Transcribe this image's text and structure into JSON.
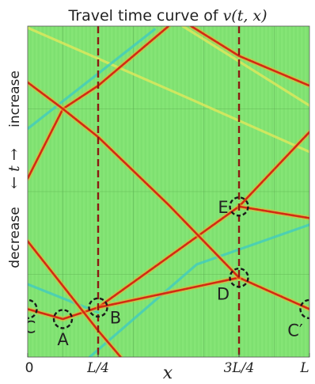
{
  "chart_data": {
    "type": "heatmap",
    "title": "Travel time curve of v(t,x)",
    "title_prefix": "Travel time curve of ",
    "title_math": "v(t, x)",
    "xlabel": "x",
    "ylabel_top": "increase",
    "ylabel_mid": "← t →",
    "ylabel_bottom": "decrease",
    "x_ticks": [
      "0",
      "L/4",
      "3L/4",
      "L"
    ],
    "x_range": [
      0,
      1
    ],
    "dashed_lines_x": [
      0.25,
      0.75
    ],
    "background_color": "#7ee070",
    "trace_color": "#d42a12",
    "faint_color": "#3cc9c5",
    "dashed_color": "#8b1a10",
    "markers": [
      {
        "label": "C",
        "x": 0.0,
        "y": 0.145
      },
      {
        "label": "A",
        "x": 0.125,
        "y": 0.115
      },
      {
        "label": "B",
        "x": 0.25,
        "y": 0.15
      },
      {
        "label": "D",
        "x": 0.75,
        "y": 0.24
      },
      {
        "label": "E",
        "x": 0.75,
        "y": 0.455
      },
      {
        "label": "C′",
        "x": 1.0,
        "y": 0.145
      }
    ],
    "traces": [
      {
        "points": [
          [
            0.0,
            0.145
          ],
          [
            0.125,
            0.115
          ],
          [
            0.25,
            0.15
          ],
          [
            0.75,
            0.455
          ],
          [
            1.0,
            0.68
          ]
        ]
      },
      {
        "points": [
          [
            0.25,
            0.15
          ],
          [
            0.75,
            0.24
          ],
          [
            1.0,
            0.145
          ]
        ]
      },
      {
        "points": [
          [
            0.0,
            0.54
          ],
          [
            0.125,
            0.75
          ],
          [
            0.25,
            0.82
          ],
          [
            0.5,
            1.0
          ]
        ]
      },
      {
        "points": [
          [
            0.0,
            0.83
          ],
          [
            0.125,
            0.75
          ],
          [
            0.25,
            0.665
          ],
          [
            0.5,
            0.46
          ],
          [
            0.75,
            0.24
          ]
        ]
      },
      {
        "points": [
          [
            0.58,
            1.0
          ],
          [
            0.75,
            0.91
          ],
          [
            1.0,
            0.82
          ]
        ]
      },
      {
        "points": [
          [
            0.0,
            0.35
          ],
          [
            0.25,
            0.08
          ],
          [
            0.33,
            0.0
          ]
        ]
      },
      {
        "points": [
          [
            0.75,
            0.455
          ],
          [
            1.0,
            0.42
          ]
        ]
      }
    ],
    "faint_traces": [
      {
        "points": [
          [
            0.0,
            0.22
          ],
          [
            0.25,
            0.135
          ]
        ]
      },
      {
        "points": [
          [
            0.0,
            0.995
          ],
          [
            0.55,
            0.79
          ],
          [
            1.0,
            0.62
          ]
        ]
      },
      {
        "points": [
          [
            0.22,
            0.0
          ],
          [
            0.6,
            0.28
          ],
          [
            1.0,
            0.4
          ]
        ]
      },
      {
        "points": [
          [
            0.55,
            1.0
          ],
          [
            1.0,
            0.76
          ]
        ]
      },
      {
        "points": [
          [
            0.0,
            0.69
          ],
          [
            0.45,
            0.99
          ]
        ]
      }
    ]
  }
}
